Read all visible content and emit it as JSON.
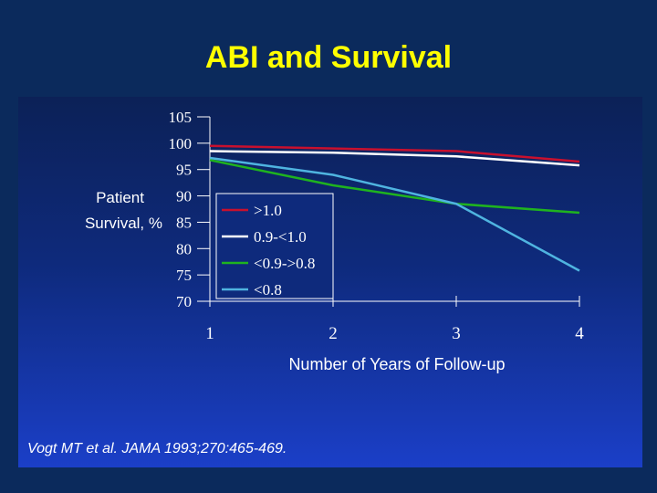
{
  "slide": {
    "title": "ABI and Survival",
    "citation": "Vogt MT et al.  JAMA 1993;270:465-469."
  },
  "colors": {
    "background": "#0b2a5c",
    "title": "#ffff00",
    "axis_text": "#ffffff",
    "series": [
      "#c8102e",
      "#ffffff",
      "#1fb31f",
      "#4fb4e0"
    ]
  },
  "chart_data": {
    "type": "line",
    "title": "",
    "xlabel": "Number of Years of Follow-up",
    "ylabel": "Patient Survival, %",
    "x": [
      1,
      2,
      3,
      4
    ],
    "xticks": [
      "1",
      "2",
      "3",
      "4"
    ],
    "yticks": [
      "105",
      "100",
      "95",
      "90",
      "85",
      "80",
      "75",
      "70"
    ],
    "xlim": [
      1,
      4
    ],
    "ylim": [
      70,
      105
    ],
    "grid": false,
    "legend_position": "center-left",
    "series": [
      {
        "name": ">1.0",
        "color": "#c8102e",
        "values": [
          99.5,
          99.0,
          98.5,
          96.5
        ]
      },
      {
        "name": "0.9-<1.0",
        "color": "#ffffff",
        "values": [
          98.5,
          98.2,
          97.5,
          95.8
        ]
      },
      {
        "name": "<0.9->0.8",
        "color": "#1fb31f",
        "values": [
          96.8,
          92.0,
          88.5,
          86.8
        ]
      },
      {
        "name": "<0.8",
        "color": "#4fb4e0",
        "values": [
          97.2,
          94.0,
          88.5,
          75.8
        ]
      }
    ]
  }
}
